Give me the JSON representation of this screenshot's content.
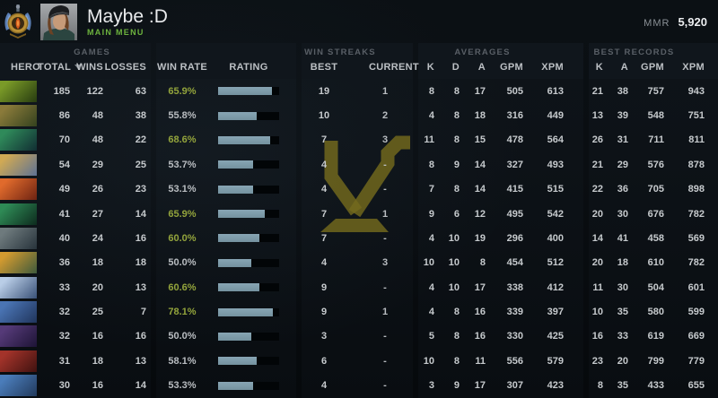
{
  "profile": {
    "name": "Maybe :D",
    "menu_label": "MAIN MENU",
    "mmr_label": "MMR",
    "mmr_value": "5,920"
  },
  "colors": {
    "accent_green": "#6db33e",
    "win_rate_green": "#93a43c",
    "bar_fill": "#7b99a9",
    "watermark_gold": "#746a1d"
  },
  "table": {
    "header": {
      "hero": "HERO",
      "games_group": "GAMES",
      "total": "TOTAL",
      "wins": "WINS",
      "losses": "LOSSES",
      "win_rate": "WIN RATE",
      "rating": "RATING",
      "win_streaks_group": "WIN STREAKS",
      "best": "BEST",
      "current": "CURRENT",
      "averages_group": "AVERAGES",
      "k": "K",
      "d": "D",
      "a": "A",
      "gpm": "GPM",
      "xpm": "XPM",
      "best_records_group": "BEST RECORDS",
      "k2": "K",
      "a2": "A",
      "gpm2": "GPM",
      "xpm2": "XPM"
    },
    "rows": [
      {
        "hero": "venomancer",
        "icon_colors": [
          "#7a9a28",
          "#273c10"
        ],
        "total": 185,
        "wins": 122,
        "losses": 63,
        "win_rate": "65.9%",
        "win_rate_positive": true,
        "rating_pct": 88,
        "streak_best": 19,
        "streak_current": "1",
        "avg_k": 8,
        "avg_d": 8,
        "avg_a": 17,
        "avg_gpm": 505,
        "avg_xpm": 613,
        "best_k": 21,
        "best_a": 38,
        "best_gpm": 757,
        "best_xpm": 943
      },
      {
        "hero": "earthshaker",
        "icon_colors": [
          "#8a7a3a",
          "#34421e"
        ],
        "total": 86,
        "wins": 48,
        "losses": 38,
        "win_rate": "55.8%",
        "win_rate_positive": false,
        "rating_pct": 63,
        "streak_best": 10,
        "streak_current": "2",
        "avg_k": 4,
        "avg_d": 8,
        "avg_a": 18,
        "avg_gpm": 316,
        "avg_xpm": 449,
        "best_k": 13,
        "best_a": 39,
        "best_gpm": 548,
        "best_xpm": 751
      },
      {
        "hero": "necrophos",
        "icon_colors": [
          "#2f8a5a",
          "#112e33"
        ],
        "total": 70,
        "wins": 48,
        "losses": 22,
        "win_rate": "68.6%",
        "win_rate_positive": true,
        "rating_pct": 86,
        "streak_best": 7,
        "streak_current": "3",
        "avg_k": 11,
        "avg_d": 8,
        "avg_a": 15,
        "avg_gpm": 478,
        "avg_xpm": 564,
        "best_k": 26,
        "best_a": 31,
        "best_gpm": 711,
        "best_xpm": 811
      },
      {
        "hero": "skywrath-mage",
        "icon_colors": [
          "#d0a954",
          "#5e7294"
        ],
        "total": 54,
        "wins": 29,
        "losses": 25,
        "win_rate": "53.7%",
        "win_rate_positive": false,
        "rating_pct": 58,
        "streak_best": 4,
        "streak_current": "-",
        "avg_k": 8,
        "avg_d": 9,
        "avg_a": 14,
        "avg_gpm": 327,
        "avg_xpm": 493,
        "best_k": 21,
        "best_a": 29,
        "best_gpm": 576,
        "best_xpm": 878
      },
      {
        "hero": "lina",
        "icon_colors": [
          "#e06a2c",
          "#6e2312"
        ],
        "total": 49,
        "wins": 26,
        "losses": 23,
        "win_rate": "53.1%",
        "win_rate_positive": false,
        "rating_pct": 58,
        "streak_best": 4,
        "streak_current": "-",
        "avg_k": 7,
        "avg_d": 8,
        "avg_a": 14,
        "avg_gpm": 415,
        "avg_xpm": 515,
        "best_k": 22,
        "best_a": 36,
        "best_gpm": 705,
        "best_xpm": 898
      },
      {
        "hero": "viper",
        "icon_colors": [
          "#2e8a55",
          "#0d2b1e"
        ],
        "total": 41,
        "wins": 27,
        "losses": 14,
        "win_rate": "65.9%",
        "win_rate_positive": true,
        "rating_pct": 76,
        "streak_best": 7,
        "streak_current": "1",
        "avg_k": 9,
        "avg_d": 6,
        "avg_a": 12,
        "avg_gpm": 495,
        "avg_xpm": 542,
        "best_k": 20,
        "best_a": 30,
        "best_gpm": 676,
        "best_xpm": 782
      },
      {
        "hero": "undying",
        "icon_colors": [
          "#6e7a7d",
          "#27333b"
        ],
        "total": 40,
        "wins": 24,
        "losses": 16,
        "win_rate": "60.0%",
        "win_rate_positive": true,
        "rating_pct": 67,
        "streak_best": 7,
        "streak_current": "-",
        "avg_k": 4,
        "avg_d": 10,
        "avg_a": 19,
        "avg_gpm": 296,
        "avg_xpm": 400,
        "best_k": 14,
        "best_a": 41,
        "best_gpm": 458,
        "best_xpm": 569
      },
      {
        "hero": "bounty-hunter",
        "icon_colors": [
          "#d29a30",
          "#3e5a3c"
        ],
        "total": 36,
        "wins": 18,
        "losses": 18,
        "win_rate": "50.0%",
        "win_rate_positive": false,
        "rating_pct": 54,
        "streak_best": 4,
        "streak_current": "3",
        "avg_k": 10,
        "avg_d": 10,
        "avg_a": 8,
        "avg_gpm": 454,
        "avg_xpm": 512,
        "best_k": 20,
        "best_a": 18,
        "best_gpm": 610,
        "best_xpm": 782
      },
      {
        "hero": "crystal-maiden",
        "icon_colors": [
          "#b9cde6",
          "#3a5278"
        ],
        "total": 33,
        "wins": 20,
        "losses": 13,
        "win_rate": "60.6%",
        "win_rate_positive": true,
        "rating_pct": 67,
        "streak_best": 9,
        "streak_current": "-",
        "avg_k": 4,
        "avg_d": 10,
        "avg_a": 17,
        "avg_gpm": 338,
        "avg_xpm": 412,
        "best_k": 11,
        "best_a": 30,
        "best_gpm": 504,
        "best_xpm": 601
      },
      {
        "hero": "tinker",
        "icon_colors": [
          "#4a74b4",
          "#20355c"
        ],
        "total": 32,
        "wins": 25,
        "losses": 7,
        "win_rate": "78.1%",
        "win_rate_positive": true,
        "rating_pct": 89,
        "streak_best": 9,
        "streak_current": "1",
        "avg_k": 4,
        "avg_d": 8,
        "avg_a": 16,
        "avg_gpm": 339,
        "avg_xpm": 397,
        "best_k": 10,
        "best_a": 35,
        "best_gpm": 580,
        "best_xpm": 599
      },
      {
        "hero": "faceless-void",
        "icon_colors": [
          "#553a78",
          "#1e1436"
        ],
        "total": 32,
        "wins": 16,
        "losses": 16,
        "win_rate": "50.0%",
        "win_rate_positive": false,
        "rating_pct": 54,
        "streak_best": 3,
        "streak_current": "-",
        "avg_k": 5,
        "avg_d": 8,
        "avg_a": 16,
        "avg_gpm": 330,
        "avg_xpm": 425,
        "best_k": 16,
        "best_a": 33,
        "best_gpm": 619,
        "best_xpm": 669
      },
      {
        "hero": "bloodseeker",
        "icon_colors": [
          "#a3332a",
          "#401210"
        ],
        "total": 31,
        "wins": 18,
        "losses": 13,
        "win_rate": "58.1%",
        "win_rate_positive": false,
        "rating_pct": 63,
        "streak_best": 6,
        "streak_current": "-",
        "avg_k": 10,
        "avg_d": 8,
        "avg_a": 11,
        "avg_gpm": 556,
        "avg_xpm": 579,
        "best_k": 23,
        "best_a": 20,
        "best_gpm": 799,
        "best_xpm": 779
      },
      {
        "hero": "storm-spirit",
        "icon_colors": [
          "#4a7cba",
          "#223a5c"
        ],
        "total": 30,
        "wins": 16,
        "losses": 14,
        "win_rate": "53.3%",
        "win_rate_positive": false,
        "rating_pct": 57,
        "streak_best": 4,
        "streak_current": "-",
        "avg_k": 3,
        "avg_d": 9,
        "avg_a": 17,
        "avg_gpm": 307,
        "avg_xpm": 423,
        "best_k": 8,
        "best_a": 35,
        "best_gpm": 433,
        "best_xpm": 655
      }
    ]
  }
}
